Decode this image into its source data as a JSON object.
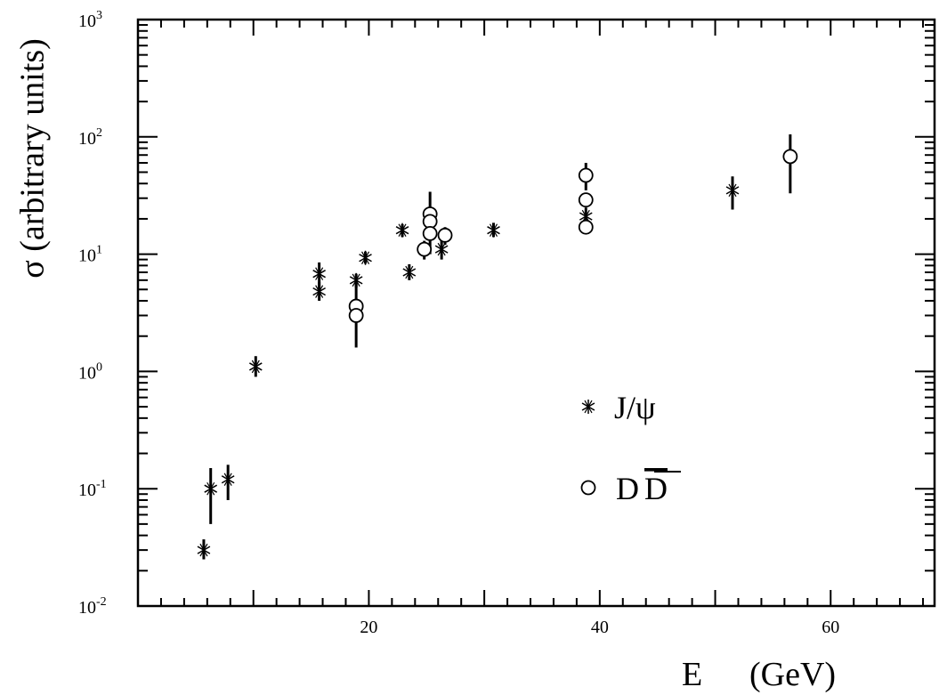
{
  "chart_data": {
    "type": "scatter",
    "title": "",
    "xlabel": "E",
    "xunit": "(GeV)",
    "ylabel": "σ (arbitrary units)",
    "xlim": [
      0,
      69
    ],
    "ylim": [
      0.01,
      1000
    ],
    "yscale": "log",
    "x_ticks": [
      "20",
      "40",
      "60"
    ],
    "y_ticks": [
      {
        "base": "10",
        "exp": "-2"
      },
      {
        "base": "10",
        "exp": "-1"
      },
      {
        "base": "10",
        "exp": "0"
      },
      {
        "base": "10",
        "exp": "1"
      },
      {
        "base": "10",
        "exp": "2"
      },
      {
        "base": "10",
        "exp": "3"
      }
    ],
    "grid": false,
    "legend_position": "center-right",
    "series": [
      {
        "name": "J/ψ",
        "marker": "asterisk",
        "points": [
          {
            "x": 5.7,
            "y": 0.03,
            "lo": 0.025,
            "hi": 0.037
          },
          {
            "x": 6.3,
            "y": 0.1,
            "lo": 0.05,
            "hi": 0.15
          },
          {
            "x": 7.8,
            "y": 0.12,
            "lo": 0.08,
            "hi": 0.16
          },
          {
            "x": 10.2,
            "y": 1.1,
            "lo": 0.9,
            "hi": 1.35
          },
          {
            "x": 15.7,
            "y": 6.8,
            "lo": 5.0,
            "hi": 8.5
          },
          {
            "x": 15.7,
            "y": 4.8,
            "lo": 4.0,
            "hi": 5.8
          },
          {
            "x": 18.9,
            "y": 6.0,
            "lo": 5.2,
            "hi": 6.8
          },
          {
            "x": 19.7,
            "y": 9.3,
            "lo": 8.3,
            "hi": 10.5
          },
          {
            "x": 22.9,
            "y": 16.0,
            "lo": 14.0,
            "hi": 18.0
          },
          {
            "x": 23.5,
            "y": 7.0,
            "lo": 6.0,
            "hi": 8.2
          },
          {
            "x": 26.3,
            "y": 11.0,
            "lo": 9.0,
            "hi": 13.0
          },
          {
            "x": 30.8,
            "y": 16.0,
            "lo": 14.0,
            "hi": 18.5
          },
          {
            "x": 38.8,
            "y": 21.0,
            "lo": 18.0,
            "hi": 25.0
          },
          {
            "x": 51.5,
            "y": 35.0,
            "lo": 24.0,
            "hi": 46.0
          }
        ]
      },
      {
        "name": "DD̄",
        "marker": "circle",
        "points": [
          {
            "x": 18.9,
            "y": 3.6,
            "lo": 1.6,
            "hi": 5.8
          },
          {
            "x": 18.9,
            "y": 3.0
          },
          {
            "x": 24.8,
            "y": 11.0,
            "lo": 9.0,
            "hi": 13.0
          },
          {
            "x": 25.3,
            "y": 22.0,
            "lo": 10.0,
            "hi": 34.0
          },
          {
            "x": 25.3,
            "y": 19.0
          },
          {
            "x": 25.3,
            "y": 15.0
          },
          {
            "x": 26.6,
            "y": 14.5,
            "lo": 12.0,
            "hi": 17.0
          },
          {
            "x": 38.8,
            "y": 47.0,
            "lo": 35.0,
            "hi": 60.0
          },
          {
            "x": 38.8,
            "y": 29.0
          },
          {
            "x": 38.8,
            "y": 17.0
          },
          {
            "x": 56.5,
            "y": 68.0,
            "lo": 33.0,
            "hi": 105.0
          }
        ]
      }
    ],
    "legend": [
      {
        "marker": "asterisk",
        "label": "J/ψ"
      },
      {
        "marker": "circle",
        "label": "D",
        "label_bar": "D"
      }
    ]
  }
}
